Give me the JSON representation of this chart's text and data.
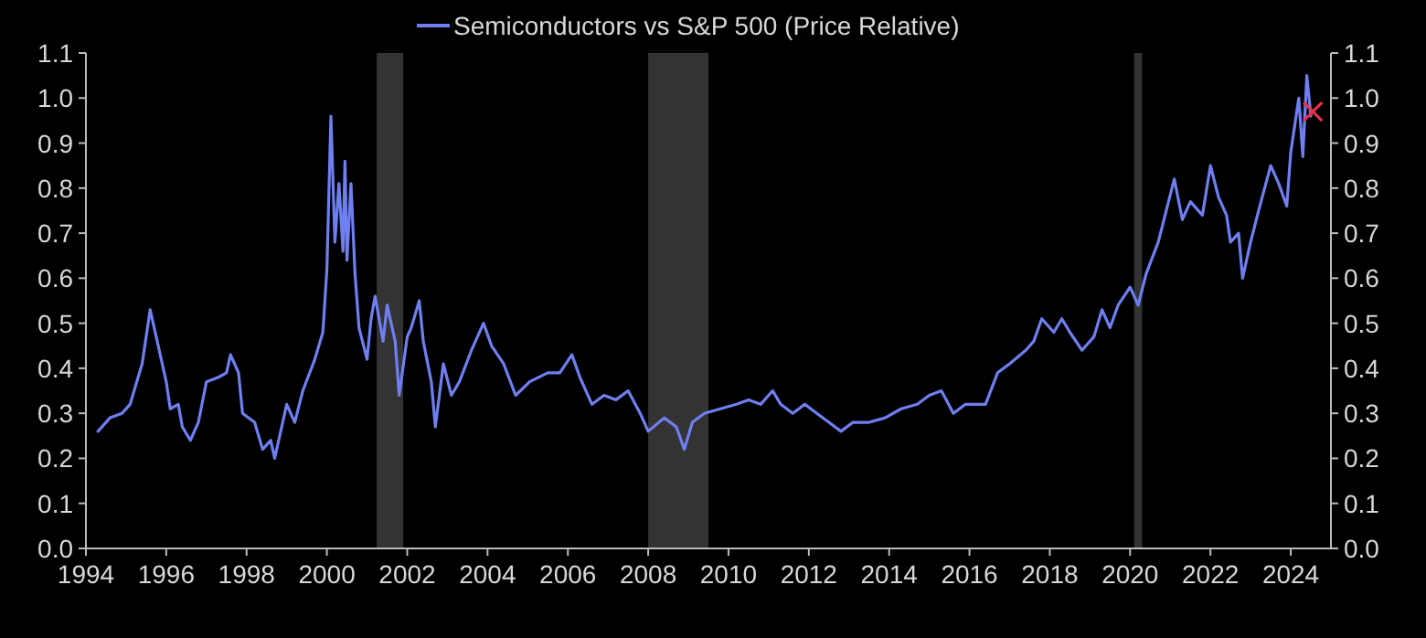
{
  "chart_data": {
    "type": "line",
    "legend": "top",
    "line_style": "solid",
    "xlim": [
      1994,
      2025
    ],
    "xticks": [
      1994,
      1996,
      1998,
      2000,
      2002,
      2004,
      2006,
      2008,
      2010,
      2012,
      2014,
      2016,
      2018,
      2020,
      2022,
      2024
    ],
    "ylim": [
      0,
      1.1
    ],
    "yticks": [
      {
        "value": 0,
        "label": "0.0"
      },
      {
        "value": 0.1,
        "label": "0.1"
      },
      {
        "value": 0.2,
        "label": "0.2"
      },
      {
        "value": 0.3,
        "label": "0.3"
      },
      {
        "value": 0.4,
        "label": "0.4"
      },
      {
        "value": 0.5,
        "label": "0.5"
      },
      {
        "value": 0.6,
        "label": "0.6"
      },
      {
        "value": 0.7,
        "label": "0.7"
      },
      {
        "value": 0.8,
        "label": "0.8"
      },
      {
        "value": 0.9,
        "label": "0.9"
      },
      {
        "value": 1,
        "label": "1.0"
      },
      {
        "value": 1.1,
        "label": "1.1"
      }
    ],
    "y2lim": [
      0,
      1.1
    ],
    "y2ticks": [
      {
        "value": 0,
        "label": "0.0"
      },
      {
        "value": 0.1,
        "label": "0.1"
      },
      {
        "value": 0.2,
        "label": "0.2"
      },
      {
        "value": 0.3,
        "label": "0.3"
      },
      {
        "value": 0.4,
        "label": "0.4"
      },
      {
        "value": 0.5,
        "label": "0.5"
      },
      {
        "value": 0.6,
        "label": "0.6"
      },
      {
        "value": 0.7,
        "label": "0.7"
      },
      {
        "value": 0.8,
        "label": "0.8"
      },
      {
        "value": 0.9,
        "label": "0.9"
      },
      {
        "value": 1,
        "label": "1.0"
      },
      {
        "value": 1.1,
        "label": "1.1"
      }
    ],
    "bands": [
      {
        "axis": "x",
        "from": 2001.24,
        "to": 2001.9,
        "color": "#333333"
      },
      {
        "axis": "x",
        "from": 2008.0,
        "to": 2009.5,
        "color": "#333333"
      },
      {
        "axis": "x",
        "from": 2020.1,
        "to": 2020.3,
        "color": "#333333"
      }
    ],
    "series": [
      {
        "name": "Semiconductors vs S&P 500 (Price Relative)",
        "color": "#6f7ff0",
        "x": [
          1994.3,
          1994.6,
          1994.9,
          1995.1,
          1995.4,
          1995.6,
          1995.7,
          1996.0,
          1996.1,
          1996.3,
          1996.4,
          1996.6,
          1996.8,
          1997.0,
          1997.3,
          1997.5,
          1997.6,
          1997.8,
          1997.9,
          1998.2,
          1998.4,
          1998.6,
          1998.7,
          1999.0,
          1999.2,
          1999.4,
          1999.7,
          1999.9,
          2000.0,
          2000.1,
          2000.2,
          2000.3,
          2000.4,
          2000.45,
          2000.5,
          2000.6,
          2000.7,
          2000.8,
          2001.0,
          2001.1,
          2001.2,
          2001.4,
          2001.5,
          2001.7,
          2001.8,
          2002.0,
          2002.1,
          2002.3,
          2002.4,
          2002.6,
          2002.7,
          2002.9,
          2003.1,
          2003.3,
          2003.6,
          2003.9,
          2004.1,
          2004.4,
          2004.7,
          2005.05,
          2005.5,
          2005.8,
          2006.1,
          2006.3,
          2006.6,
          2006.9,
          2007.2,
          2007.5,
          2007.8,
          2008.0,
          2008.4,
          2008.7,
          2008.9,
          2009.1,
          2009.4,
          2009.8,
          2010.2,
          2010.5,
          2010.8,
          2011.1,
          2011.3,
          2011.6,
          2011.9,
          2012.2,
          2012.5,
          2012.8,
          2013.1,
          2013.5,
          2013.9,
          2014.3,
          2014.7,
          2015.0,
          2015.3,
          2015.6,
          2015.9,
          2016.2,
          2016.4,
          2016.7,
          2017.0,
          2017.4,
          2017.6,
          2017.8,
          2018.1,
          2018.3,
          2018.5,
          2018.8,
          2019.1,
          2019.3,
          2019.5,
          2019.7,
          2020.0,
          2020.2,
          2020.4,
          2020.7,
          2020.9,
          2021.1,
          2021.3,
          2021.5,
          2021.8,
          2022.0,
          2022.2,
          2022.4,
          2022.5,
          2022.7,
          2022.8,
          2023.0,
          2023.2,
          2023.5,
          2023.7,
          2023.9,
          2024.0,
          2024.2,
          2024.3,
          2024.4,
          2024.5
        ],
        "values": [
          0.26,
          0.29,
          0.3,
          0.32,
          0.41,
          0.53,
          0.49,
          0.37,
          0.31,
          0.32,
          0.27,
          0.24,
          0.28,
          0.37,
          0.38,
          0.39,
          0.43,
          0.39,
          0.3,
          0.28,
          0.22,
          0.24,
          0.2,
          0.32,
          0.28,
          0.35,
          0.42,
          0.48,
          0.62,
          0.96,
          0.68,
          0.81,
          0.66,
          0.86,
          0.64,
          0.81,
          0.61,
          0.49,
          0.42,
          0.51,
          0.56,
          0.46,
          0.54,
          0.46,
          0.34,
          0.47,
          0.49,
          0.55,
          0.46,
          0.37,
          0.27,
          0.41,
          0.34,
          0.37,
          0.44,
          0.5,
          0.45,
          0.41,
          0.34,
          0.37,
          0.39,
          0.39,
          0.43,
          0.38,
          0.32,
          0.34,
          0.33,
          0.35,
          0.3,
          0.26,
          0.29,
          0.27,
          0.22,
          0.28,
          0.3,
          0.31,
          0.32,
          0.33,
          0.32,
          0.35,
          0.32,
          0.3,
          0.32,
          0.3,
          0.28,
          0.26,
          0.28,
          0.28,
          0.29,
          0.31,
          0.32,
          0.34,
          0.35,
          0.3,
          0.32,
          0.32,
          0.32,
          0.39,
          0.41,
          0.44,
          0.46,
          0.51,
          0.48,
          0.51,
          0.48,
          0.44,
          0.47,
          0.53,
          0.49,
          0.54,
          0.58,
          0.54,
          0.61,
          0.68,
          0.75,
          0.82,
          0.73,
          0.77,
          0.74,
          0.85,
          0.78,
          0.74,
          0.68,
          0.7,
          0.6,
          0.68,
          0.75,
          0.85,
          0.81,
          0.76,
          0.88,
          1.0,
          0.87,
          1.05,
          0.96
        ]
      },
      {
        "type": "scatter",
        "marker": "cross",
        "color": "#e8304a",
        "x": [
          2024.55
        ],
        "values": [
          0.97
        ]
      }
    ]
  }
}
